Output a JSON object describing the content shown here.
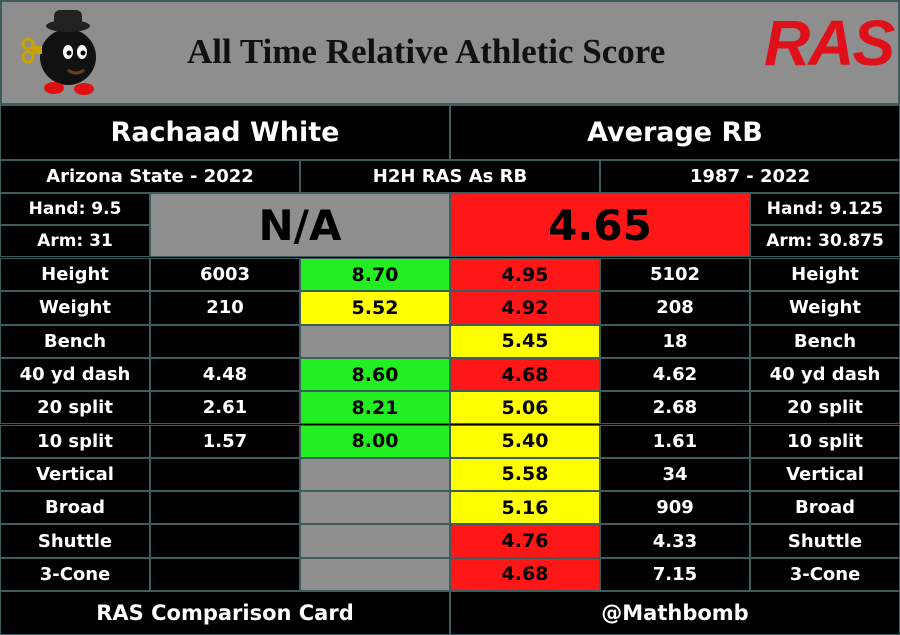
{
  "header": {
    "title": "All Time Relative Athletic Score",
    "logo": "RAS"
  },
  "player": {
    "name": "Rachaad White",
    "school_year": "Arizona State - 2022",
    "hand": "Hand: 9.5",
    "arm": "Arm: 31",
    "ras": "N/A",
    "ras_color": "#8f8f8f"
  },
  "comparison": {
    "name": "Average RB",
    "years": "1987 - 2022",
    "hand": "Hand: 9.125",
    "arm": "Arm: 30.875",
    "ras": "4.65",
    "ras_color": "#ff1616"
  },
  "center_label": "H2H RAS As RB",
  "empty_color": "#8f8f8f",
  "rows": [
    {
      "label": "Height",
      "player_value": "6003",
      "player_score": "8.70",
      "player_color": "#22ee22",
      "avg_score": "4.95",
      "avg_color": "#ff1616",
      "avg_value": "5102"
    },
    {
      "label": "Weight",
      "player_value": "210",
      "player_score": "5.52",
      "player_color": "#ffff00",
      "avg_score": "4.92",
      "avg_color": "#ff1616",
      "avg_value": "208"
    },
    {
      "label": "Bench",
      "player_value": null,
      "player_score": null,
      "player_color": null,
      "avg_score": "5.45",
      "avg_color": "#ffff00",
      "avg_value": "18"
    },
    {
      "label": "40 yd dash",
      "player_value": "4.48",
      "player_score": "8.60",
      "player_color": "#22ee22",
      "avg_score": "4.68",
      "avg_color": "#ff1616",
      "avg_value": "4.62"
    },
    {
      "label": "20 split",
      "player_value": "2.61",
      "player_score": "8.21",
      "player_color": "#22ee22",
      "avg_score": "5.06",
      "avg_color": "#ffff00",
      "avg_value": "2.68"
    },
    {
      "label": "10 split",
      "player_value": "1.57",
      "player_score": "8.00",
      "player_color": "#22ee22",
      "avg_score": "5.40",
      "avg_color": "#ffff00",
      "avg_value": "1.61"
    },
    {
      "label": "Vertical",
      "player_value": null,
      "player_score": null,
      "player_color": null,
      "avg_score": "5.58",
      "avg_color": "#ffff00",
      "avg_value": "34"
    },
    {
      "label": "Broad",
      "player_value": null,
      "player_score": null,
      "player_color": null,
      "avg_score": "5.16",
      "avg_color": "#ffff00",
      "avg_value": "909"
    },
    {
      "label": "Shuttle",
      "player_value": null,
      "player_score": null,
      "player_color": null,
      "avg_score": "4.76",
      "avg_color": "#ff1616",
      "avg_value": "4.33"
    },
    {
      "label": "3-Cone",
      "player_value": null,
      "player_score": null,
      "player_color": null,
      "avg_score": "4.68",
      "avg_color": "#ff1616",
      "avg_value": "7.15"
    }
  ],
  "footer": {
    "left": "RAS Comparison Card",
    "right": "@Mathbomb"
  }
}
